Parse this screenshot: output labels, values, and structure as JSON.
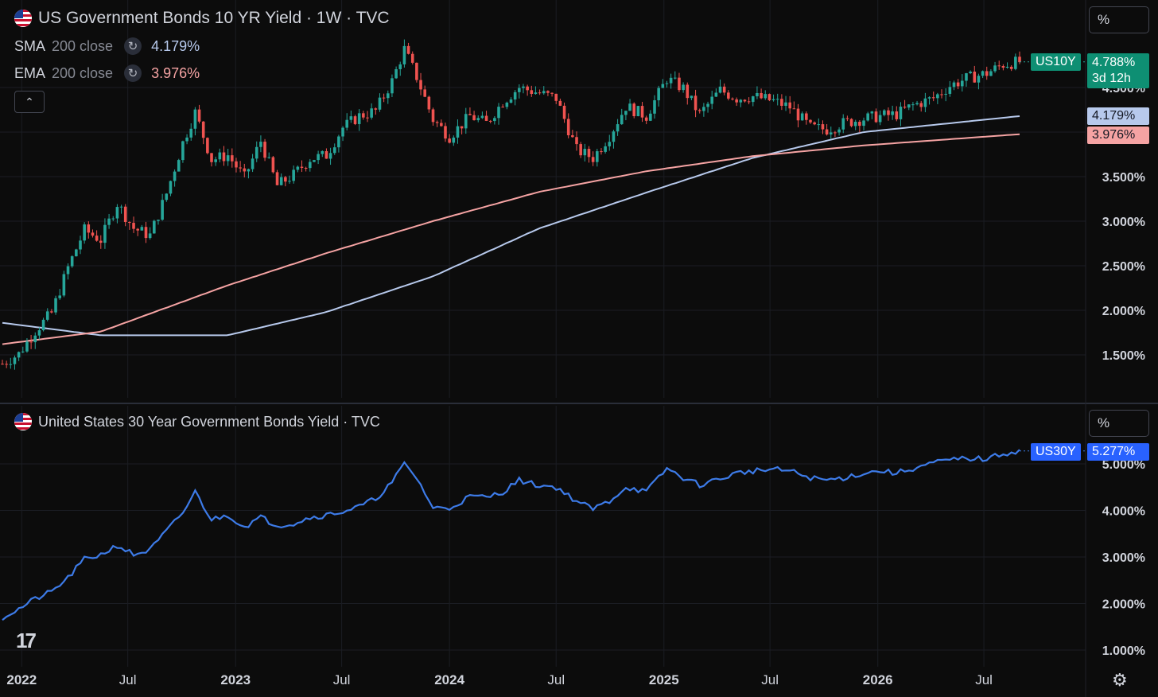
{
  "top_pane": {
    "title": "US Government Bonds 10 YR Yield · 1W · TVC",
    "indicators": [
      {
        "name": "SMA",
        "params": "200 close",
        "value": "4.179%",
        "color": "#b7c9ec"
      },
      {
        "name": "EMA",
        "params": "200 close",
        "value": "3.976%",
        "color": "#f5a3a3"
      }
    ],
    "unit_button": "%",
    "collapse_icon": "chevron-up-icon",
    "price_badge": {
      "symbol": "US10Y",
      "value": "4.788%",
      "countdown": "3d 12h",
      "color": "#0e8f73"
    },
    "sma_badge": "4.179%",
    "ema_badge": "3.976%"
  },
  "bottom_pane": {
    "title": "United States 30 Year Government Bonds Yield · TVC",
    "unit_button": "%",
    "price_badge": {
      "symbol": "US30Y",
      "value": "5.277%",
      "color": "#2962ff"
    }
  },
  "x_axis_labels": [
    "2022",
    "Jul",
    "2023",
    "Jul",
    "2024",
    "Jul",
    "2025",
    "Jul",
    "2026",
    "Jul"
  ],
  "logo_text": "17",
  "settings_icon": "gear-icon",
  "flag_icon": "us-flag-icon",
  "refresh_icon": "cycle-icon",
  "chart_data": [
    {
      "type": "candlestick",
      "title": "US Government Bonds 10 YR Yield · 1W · TVC",
      "y_tick_labels": [
        "4.500%",
        "3.500%",
        "3.000%",
        "2.500%",
        "2.000%",
        "1.500%"
      ],
      "ylim": [
        0.9,
        5.3
      ],
      "x_range": [
        "2021-11-29",
        "2026-08-31"
      ],
      "grid": true,
      "colors": {
        "up": "#26a69a",
        "down": "#ef5350",
        "sma": "#b7c9ec",
        "ema": "#f5a3a3"
      },
      "close_series": {
        "dates": [
          "2021-11-29",
          "2021-12-27",
          "2022-01-24",
          "2022-02-21",
          "2022-03-21",
          "2022-04-18",
          "2022-05-16",
          "2022-06-13",
          "2022-07-11",
          "2022-08-08",
          "2022-09-05",
          "2022-10-03",
          "2022-10-24",
          "2022-11-21",
          "2022-12-19",
          "2023-01-16",
          "2023-02-13",
          "2023-03-13",
          "2023-04-10",
          "2023-05-08",
          "2023-06-05",
          "2023-07-03",
          "2023-07-31",
          "2023-08-28",
          "2023-09-25",
          "2023-10-16",
          "2023-11-06",
          "2023-12-04",
          "2024-01-01",
          "2024-02-05",
          "2024-03-04",
          "2024-04-01",
          "2024-04-29",
          "2024-05-27",
          "2024-07-01",
          "2024-08-05",
          "2024-09-02",
          "2024-09-30",
          "2024-10-28",
          "2024-12-02",
          "2025-01-06",
          "2025-02-03",
          "2025-03-03",
          "2025-04-07",
          "2025-05-05",
          "2025-06-02",
          "2025-07-07",
          "2025-08-04",
          "2025-09-08",
          "2025-10-06",
          "2025-11-03",
          "2025-12-08",
          "2026-01-05",
          "2026-02-02",
          "2026-03-02",
          "2026-04-06",
          "2026-05-04",
          "2026-06-01",
          "2026-07-06",
          "2026-08-03",
          "2026-08-31"
        ],
        "values": [
          1.4,
          1.51,
          1.77,
          1.97,
          2.48,
          2.9,
          2.79,
          3.2,
          2.92,
          2.84,
          3.31,
          3.88,
          4.22,
          3.69,
          3.74,
          3.49,
          3.9,
          3.4,
          3.52,
          3.7,
          3.74,
          4.05,
          4.18,
          4.24,
          4.57,
          4.93,
          4.62,
          4.14,
          3.95,
          4.18,
          4.1,
          4.34,
          4.5,
          4.45,
          4.38,
          3.8,
          3.71,
          3.96,
          4.29,
          4.18,
          4.6,
          4.49,
          4.2,
          4.47,
          4.38,
          4.4,
          4.35,
          4.28,
          4.05,
          4.03,
          4.1,
          4.15,
          4.18,
          4.2,
          4.3,
          4.38,
          4.52,
          4.6,
          4.66,
          4.76,
          4.788
        ]
      },
      "sma_200": {
        "dates": [
          "2021-11-29",
          "2022-05-16",
          "2022-12-19",
          "2023-06-05",
          "2023-12-04",
          "2024-06-03",
          "2024-12-02",
          "2025-06-02",
          "2025-12-08",
          "2026-08-31"
        ],
        "values": [
          1.86,
          1.72,
          1.72,
          1.98,
          2.38,
          2.92,
          3.32,
          3.71,
          4.0,
          4.179
        ]
      },
      "ema_200": {
        "dates": [
          "2021-11-29",
          "2022-05-16",
          "2022-12-19",
          "2023-06-05",
          "2023-12-04",
          "2024-06-03",
          "2024-12-02",
          "2025-06-02",
          "2025-12-08",
          "2026-08-31"
        ],
        "values": [
          1.62,
          1.76,
          2.28,
          2.64,
          3.0,
          3.33,
          3.56,
          3.73,
          3.85,
          3.976
        ]
      }
    },
    {
      "type": "line",
      "title": "United States 30 Year Government Bonds Yield · TVC",
      "y_tick_labels": [
        "5.000%",
        "4.000%",
        "3.000%",
        "2.000%",
        "1.000%"
      ],
      "ylim": [
        0.7,
        5.5
      ],
      "x_range": [
        "2021-11-29",
        "2026-08-31"
      ],
      "grid": true,
      "series": [
        {
          "color": "#3d7be8",
          "dates": [
            "2021-11-29",
            "2021-12-27",
            "2022-01-24",
            "2022-02-21",
            "2022-03-21",
            "2022-04-18",
            "2022-05-16",
            "2022-06-13",
            "2022-07-11",
            "2022-08-08",
            "2022-09-05",
            "2022-10-03",
            "2022-10-24",
            "2022-11-21",
            "2022-12-19",
            "2023-01-16",
            "2023-02-13",
            "2023-03-13",
            "2023-04-10",
            "2023-05-08",
            "2023-06-05",
            "2023-07-03",
            "2023-07-31",
            "2023-08-28",
            "2023-09-25",
            "2023-10-16",
            "2023-11-06",
            "2023-12-04",
            "2024-01-01",
            "2024-02-05",
            "2024-03-04",
            "2024-04-01",
            "2024-04-29",
            "2024-05-27",
            "2024-07-01",
            "2024-08-05",
            "2024-09-02",
            "2024-09-30",
            "2024-10-28",
            "2024-12-02",
            "2025-01-06",
            "2025-02-03",
            "2025-03-03",
            "2025-04-07",
            "2025-05-05",
            "2025-06-02",
            "2025-07-07",
            "2025-08-04",
            "2025-09-08",
            "2025-10-06",
            "2025-11-03",
            "2025-12-08",
            "2026-01-05",
            "2026-02-02",
            "2026-03-02",
            "2026-04-06",
            "2026-05-04",
            "2026-06-01",
            "2026-07-06",
            "2026-08-03",
            "2026-08-31"
          ],
          "values": [
            1.7,
            1.88,
            2.1,
            2.25,
            2.55,
            2.95,
            3.05,
            3.25,
            3.05,
            3.15,
            3.55,
            3.95,
            4.4,
            3.8,
            3.9,
            3.65,
            3.85,
            3.68,
            3.72,
            3.85,
            3.9,
            3.98,
            4.08,
            4.25,
            4.6,
            5.0,
            4.7,
            4.05,
            4.05,
            4.3,
            4.28,
            4.4,
            4.65,
            4.55,
            4.5,
            4.2,
            4.03,
            4.2,
            4.5,
            4.4,
            4.9,
            4.7,
            4.55,
            4.68,
            4.8,
            4.85,
            4.88,
            4.85,
            4.7,
            4.65,
            4.7,
            4.8,
            4.85,
            4.8,
            4.9,
            5.02,
            5.08,
            5.12,
            5.1,
            5.22,
            5.277
          ]
        }
      ]
    }
  ]
}
